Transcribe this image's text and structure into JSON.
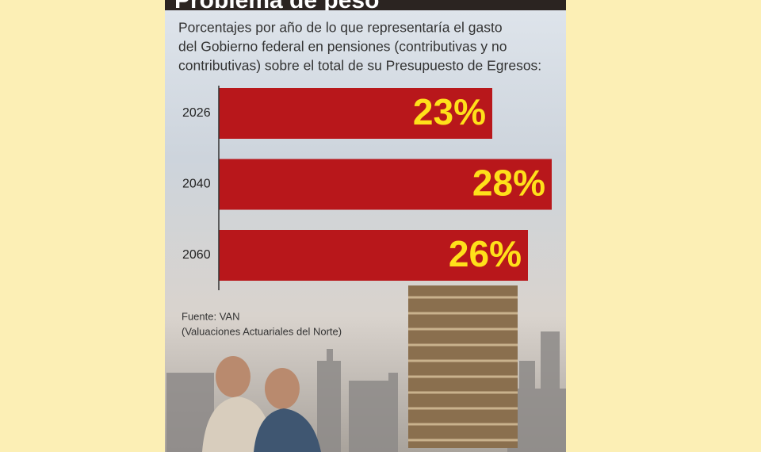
{
  "chart_data": {
    "type": "bar",
    "orientation": "horizontal",
    "title": "Problema de peso",
    "subtitle": [
      "Porcentajes por año de lo que representaría el gasto",
      "del Gobierno federal en pensiones (contributivas y no",
      "contributivas) sobre el total de su Presupuesto de Egresos:"
    ],
    "categories": [
      "2026",
      "2040",
      "2060"
    ],
    "values": [
      23,
      28,
      26
    ],
    "value_labels": [
      "23%",
      "28%",
      "26%"
    ],
    "color": "#b8171b",
    "label_color": "#ffe01a",
    "source": [
      "Fuente: VAN",
      "(Valuaciones Actuariales del Norte)"
    ]
  }
}
